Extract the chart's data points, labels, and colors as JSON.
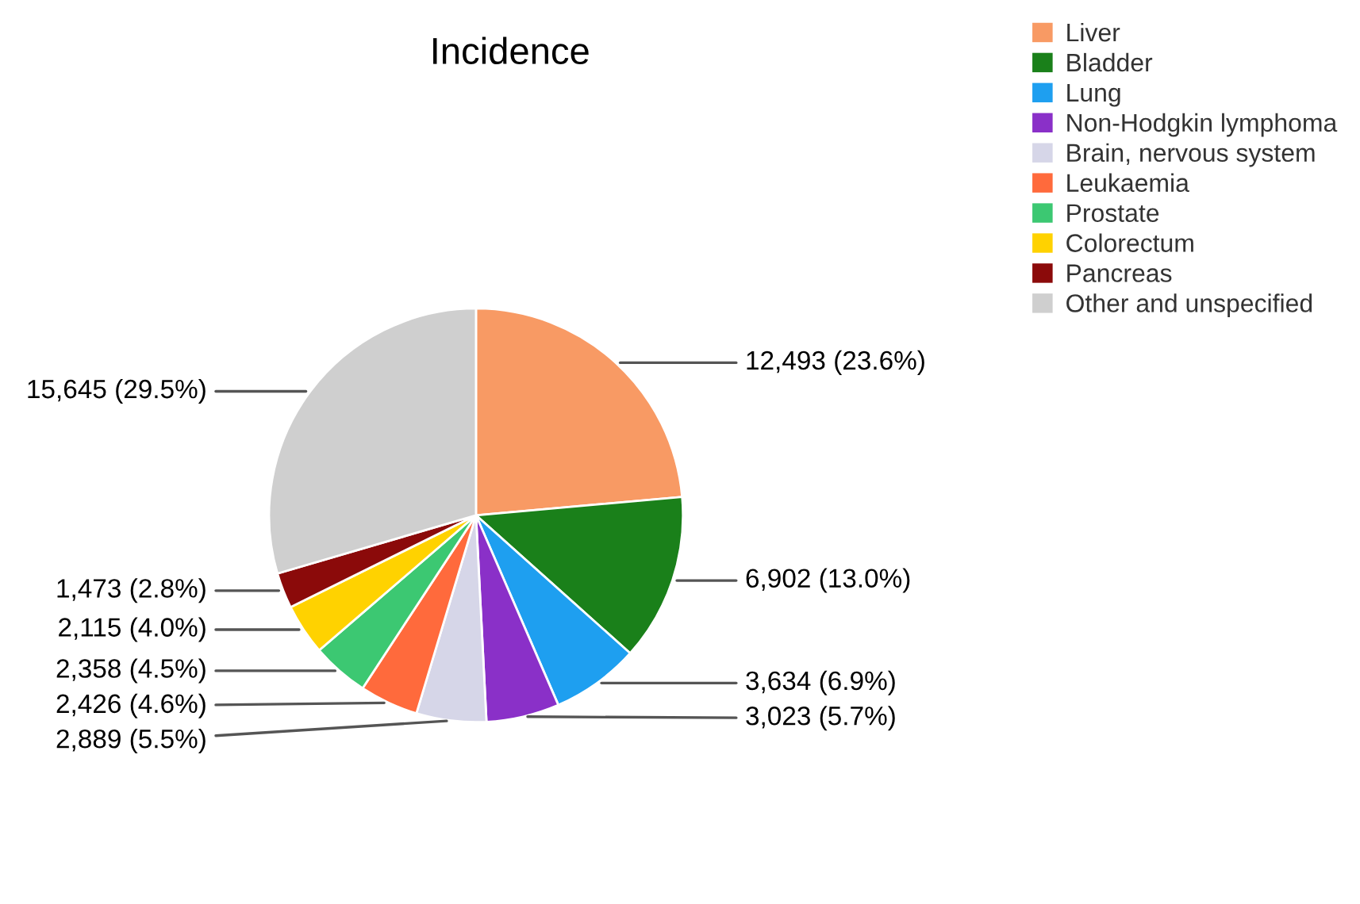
{
  "chart_data": {
    "type": "pie",
    "title": "Incidence",
    "categories": [
      "Liver",
      "Bladder",
      "Lung",
      "Non-Hodgkin lymphoma",
      "Brain, nervous system",
      "Leukaemia",
      "Prostate",
      "Colorectum",
      "Pancreas",
      "Other and unspecified"
    ],
    "values": [
      12493,
      6902,
      3634,
      3023,
      2889,
      2426,
      2358,
      2115,
      1473,
      15645
    ],
    "colors": [
      "#f89a64",
      "#1a801a",
      "#1e9ff0",
      "#8a30c8",
      "#d6d6e8",
      "#ff6a3c",
      "#3cc872",
      "#ffd200",
      "#8b0a0a",
      "#cfcfcf"
    ],
    "value_labels": [
      "12,493 (23.6%)",
      "6,902 (13.0%)",
      "3,634 (6.9%)",
      "3,023 (5.7%)",
      "2,889 (5.5%)",
      "2,426 (4.6%)",
      "2,358 (4.5%)",
      "2,115 (4.0%)",
      "1,473 (2.8%)",
      "15,645 (29.5%)"
    ],
    "legend": "top right"
  }
}
